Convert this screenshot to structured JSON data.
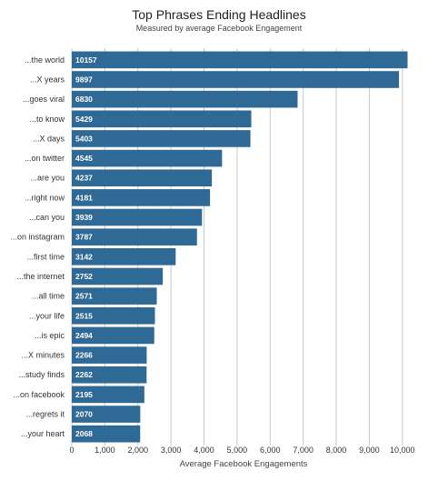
{
  "chart_data": {
    "type": "bar",
    "orientation": "horizontal",
    "title": "Top Phrases Ending Headlines",
    "subtitle": "Measured by average Facebook Engagement",
    "xlabel": "Average Facebook Engagements",
    "ylabel": "",
    "xlim": [
      0,
      10500
    ],
    "grid": true,
    "bar_color": "#2f6a97",
    "x_ticks": [
      {
        "value": 0,
        "label": "0"
      },
      {
        "value": 1000,
        "label": "1,000"
      },
      {
        "value": 2000,
        "label": "2,000"
      },
      {
        "value": 3000,
        "label": "3,000"
      },
      {
        "value": 4000,
        "label": "4,000"
      },
      {
        "value": 5000,
        "label": "5,000"
      },
      {
        "value": 6000,
        "label": "6,000"
      },
      {
        "value": 7000,
        "label": "7,000"
      },
      {
        "value": 8000,
        "label": "8,000"
      },
      {
        "value": 9000,
        "label": "9,000"
      },
      {
        "value": 10000,
        "label": "10,000"
      }
    ],
    "categories": [
      "...the world",
      "...X years",
      "...goes viral",
      "...to know",
      "...X days",
      "...on twitter",
      "...are you",
      "...right now",
      "...can you",
      "...on instagram",
      "...first time",
      "...the internet",
      "...all time",
      "...your life",
      "...is epic",
      "...X minutes",
      "...study finds",
      "...on facebook",
      "...regrets it",
      "...your heart"
    ],
    "values": [
      10157,
      9897,
      6830,
      5429,
      5403,
      4545,
      4237,
      4181,
      3939,
      3787,
      3142,
      2752,
      2571,
      2515,
      2494,
      2266,
      2262,
      2195,
      2070,
      2068
    ]
  }
}
